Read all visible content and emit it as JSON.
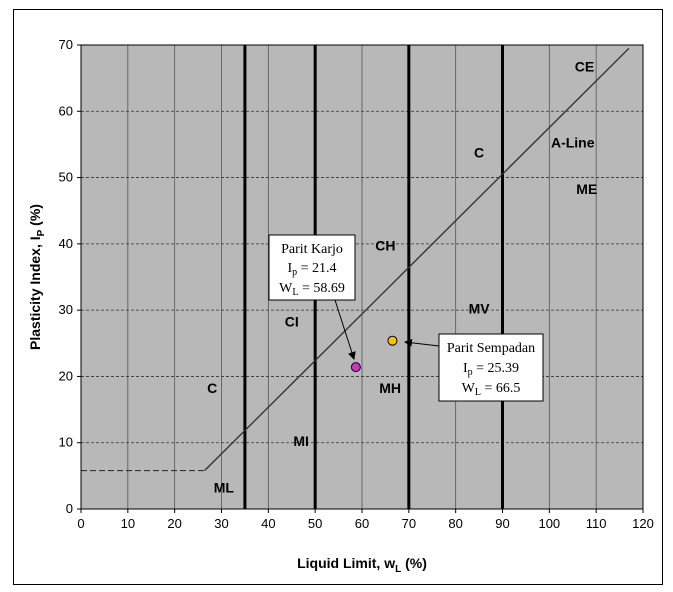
{
  "chart_data": {
    "type": "scatter",
    "xlabel": "Liquid Limit, w",
    "xlabel_sub": "L",
    "xlabel_unit": " (%)",
    "ylabel": "Plasticity Index, I",
    "ylabel_sub": "P",
    "ylabel_unit": " (%)",
    "xlim": [
      0,
      120
    ],
    "ylim": [
      0,
      70
    ],
    "x_ticks": [
      "0",
      "10",
      "20",
      "30",
      "40",
      "50",
      "60",
      "70",
      "80",
      "90",
      "100",
      "110",
      "120"
    ],
    "y_ticks": [
      "0",
      "10",
      "20",
      "30",
      "40",
      "50",
      "60",
      "70"
    ],
    "grid": true,
    "a_line": {
      "label": "A-Line",
      "points": [
        [
          26.4,
          5.8
        ],
        [
          117,
          69.5
        ]
      ]
    },
    "u_line_dashed": [
      [
        0,
        5.8
      ],
      [
        26.4,
        5.8
      ]
    ],
    "boundaries_bold": [
      35,
      50,
      70,
      90
    ],
    "zone_labels": [
      {
        "text": "CE",
        "x": 107.5,
        "y": 66
      },
      {
        "text": "C",
        "x": 85,
        "y": 53
      },
      {
        "text": "A-Line",
        "x": 105,
        "y": 54.5
      },
      {
        "text": "ME",
        "x": 108,
        "y": 47.5
      },
      {
        "text": "CH",
        "x": 65,
        "y": 39
      },
      {
        "text": "MV",
        "x": 85,
        "y": 29.5
      },
      {
        "text": "CI",
        "x": 45,
        "y": 27.5
      },
      {
        "text": "MH",
        "x": 66,
        "y": 17.5
      },
      {
        "text": "C",
        "x": 28,
        "y": 17.5
      },
      {
        "text": "MI",
        "x": 47,
        "y": 9.5
      },
      {
        "text": "ML",
        "x": 30.5,
        "y": 2.5
      }
    ],
    "points": [
      {
        "name": "Parit Karjo",
        "x": 58.69,
        "y": 21.4,
        "color": "#cc33cc",
        "label_ip": "I",
        "label_ip_sub": "p",
        "label_ip_val": " = 21.4",
        "label_wl": "W",
        "label_wl_sub": "L",
        "label_wl_val": " = 58.69"
      },
      {
        "name": "Parit Sempadan",
        "x": 66.5,
        "y": 25.39,
        "color": "#f5c400",
        "label_ip": "I",
        "label_ip_sub": "p",
        "label_ip_val": " = 25.39",
        "label_wl": "W",
        "label_wl_sub": "L",
        "label_wl_val": " = 66.5"
      }
    ]
  }
}
